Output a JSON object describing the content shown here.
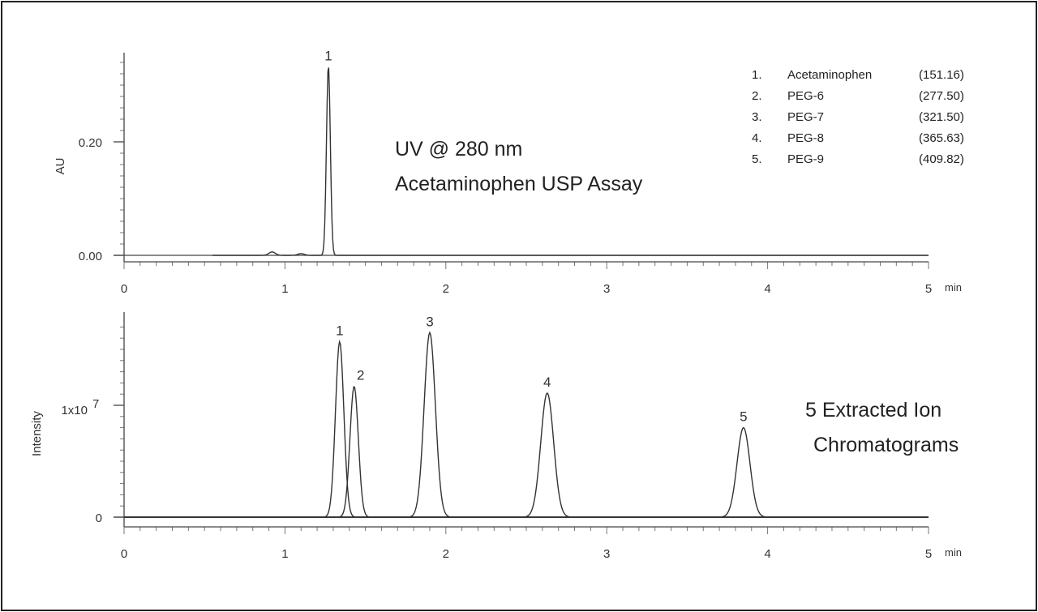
{
  "chart_data": [
    {
      "type": "line",
      "ylabel": "AU",
      "xlabel": "",
      "x_unit": "min",
      "xlim": [
        0,
        5
      ],
      "ylim": [
        -0.01,
        0.36
      ],
      "xticks": [
        "0",
        "1",
        "2",
        "3",
        "4",
        "5"
      ],
      "yticks": [
        {
          "value": 0.0,
          "label": "0.00"
        },
        {
          "value": 0.2,
          "label": "0.20"
        }
      ],
      "annotation": [
        "UV @ 280 nm",
        "Acetaminophen USP Assay"
      ],
      "peaks": [
        {
          "label": "1",
          "rt": 1.27,
          "height": 0.335,
          "width": 0.012
        }
      ],
      "minor_peaks": [
        {
          "rt": 0.92,
          "height": 0.006,
          "width": 0.02
        },
        {
          "rt": 1.1,
          "height": 0.003,
          "width": 0.02
        }
      ],
      "legend": [
        {
          "num": "1.",
          "name": "Acetaminophen",
          "mass": "(151.16)"
        },
        {
          "num": "2.",
          "name": "PEG-6",
          "mass": "(277.50)"
        },
        {
          "num": "3.",
          "name": "PEG-7",
          "mass": "(321.50)"
        },
        {
          "num": "4.",
          "name": "PEG-8",
          "mass": "(365.63)"
        },
        {
          "num": "5.",
          "name": "PEG-9",
          "mass": "(409.82)"
        }
      ]
    },
    {
      "type": "line",
      "ylabel": "Intensity",
      "xlabel": "",
      "x_unit": "min",
      "xlim": [
        0,
        5
      ],
      "ylim": [
        0,
        17500000
      ],
      "xticks": [
        "0",
        "1",
        "2",
        "3",
        "4",
        "5"
      ],
      "yticks": [
        {
          "value": 0,
          "label": "0"
        },
        {
          "value": 10000000,
          "label": "1x10",
          "exp": "7"
        }
      ],
      "annotation": [
        "5 Extracted Ion",
        "Chromatograms"
      ],
      "series": [
        {
          "label": "1",
          "rt": 1.34,
          "height": 15700000,
          "width": 0.026
        },
        {
          "label": "2",
          "rt": 1.43,
          "height": 11700000,
          "width": 0.026
        },
        {
          "label": "3",
          "rt": 1.9,
          "height": 16500000,
          "width": 0.035
        },
        {
          "label": "4",
          "rt": 2.63,
          "height": 11100000,
          "width": 0.04
        },
        {
          "label": "5",
          "rt": 3.85,
          "height": 8000000,
          "width": 0.04
        }
      ]
    }
  ]
}
